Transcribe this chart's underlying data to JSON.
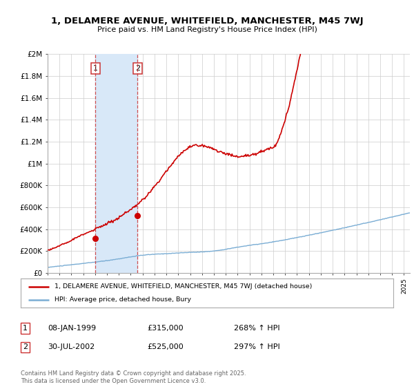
{
  "title_line1": "1, DELAMERE AVENUE, WHITEFIELD, MANCHESTER, M45 7WJ",
  "title_line2": "Price paid vs. HM Land Registry's House Price Index (HPI)",
  "ylabel_ticks": [
    "£0",
    "£200K",
    "£400K",
    "£600K",
    "£800K",
    "£1M",
    "£1.2M",
    "£1.4M",
    "£1.6M",
    "£1.8M",
    "£2M"
  ],
  "ytick_values": [
    0,
    200000,
    400000,
    600000,
    800000,
    1000000,
    1200000,
    1400000,
    1600000,
    1800000,
    2000000
  ],
  "ylim": [
    0,
    2000000
  ],
  "xlim_start": 1995.0,
  "xlim_end": 2025.5,
  "hpi_color": "#7aadd4",
  "price_color": "#cc0000",
  "annotation_color": "#cc3333",
  "shading_color": "#d8e8f8",
  "sale1_date": 1999.03,
  "sale1_price": 315000,
  "sale1_label": "1",
  "sale2_date": 2002.58,
  "sale2_price": 525000,
  "sale2_label": "2",
  "legend_line1": "1, DELAMERE AVENUE, WHITEFIELD, MANCHESTER, M45 7WJ (detached house)",
  "legend_line2": "HPI: Average price, detached house, Bury",
  "table_row1": [
    "1",
    "08-JAN-1999",
    "£315,000",
    "268% ↑ HPI"
  ],
  "table_row2": [
    "2",
    "30-JUL-2002",
    "£525,000",
    "297% ↑ HPI"
  ],
  "footer": "Contains HM Land Registry data © Crown copyright and database right 2025.\nThis data is licensed under the Open Government Licence v3.0.",
  "background_color": "#ffffff",
  "grid_color": "#cccccc"
}
